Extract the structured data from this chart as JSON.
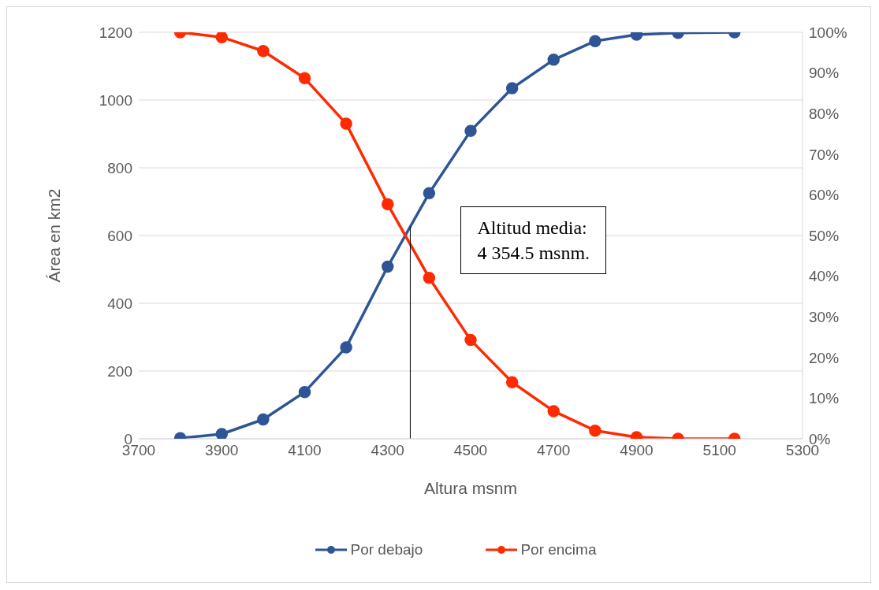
{
  "chart_data": {
    "type": "line",
    "xlabel": "Altura msnm",
    "ylabel": "Área en km2",
    "x": [
      3800,
      3900,
      4000,
      4100,
      4200,
      4300,
      4400,
      4500,
      4600,
      4700,
      4800,
      4900,
      5000,
      5136
    ],
    "series": [
      {
        "name": "Por debajo",
        "color": "#2f5597",
        "values": [
          2,
          14,
          57,
          138,
          270,
          508,
          725,
          909,
          1035,
          1119,
          1174,
          1193,
          1198,
          1200
        ]
      },
      {
        "name": "Por encima",
        "color": "#ff2a00",
        "axis": "y2",
        "values": [
          100,
          98.8,
          95.4,
          88.7,
          77.5,
          57.7,
          39.6,
          24.3,
          13.9,
          6.8,
          2.0,
          0.4,
          0,
          0
        ]
      }
    ],
    "xlim": [
      3700,
      5300
    ],
    "xticks": [
      3700,
      3900,
      4100,
      4300,
      4500,
      4700,
      4900,
      5100,
      5300
    ],
    "ylim": [
      0,
      1200
    ],
    "yticks": [
      0,
      200,
      400,
      600,
      800,
      1000,
      1200
    ],
    "y2lim": [
      0,
      100
    ],
    "y2ticks": [
      {
        "value": 0,
        "label": "0%"
      },
      {
        "value": 10,
        "label": "10%"
      },
      {
        "value": 20,
        "label": "20%"
      },
      {
        "value": 30,
        "label": "30%"
      },
      {
        "value": 40,
        "label": "40%"
      },
      {
        "value": 50,
        "label": "50%"
      },
      {
        "value": 60,
        "label": "60%"
      },
      {
        "value": 70,
        "label": "70%"
      },
      {
        "value": 80,
        "label": "80%"
      },
      {
        "value": 90,
        "label": "90%"
      },
      {
        "value": 100,
        "label": "100%"
      }
    ],
    "ref_lines": [
      {
        "axis": "x",
        "value": 4354.5,
        "color": "#000000"
      }
    ],
    "annotations": [
      "Altitud media:\n4 354.5 msnm."
    ],
    "grid": "y",
    "legend": "bottom",
    "marker": "circle",
    "line_style": "solid"
  }
}
